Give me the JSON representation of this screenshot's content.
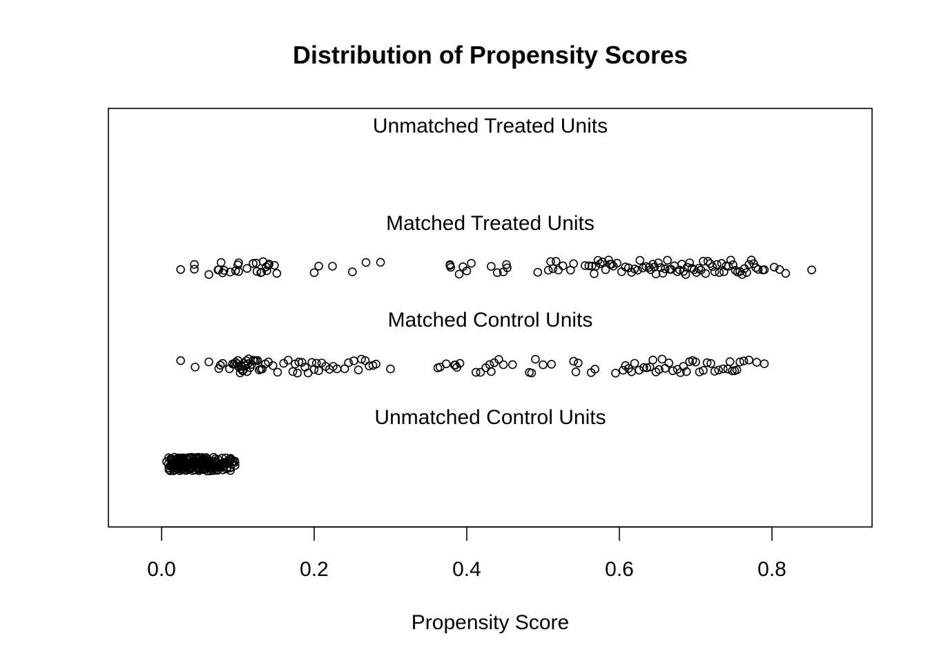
{
  "chart_data": {
    "type": "scatter",
    "title": "Distribution of Propensity Scores",
    "xlabel": "Propensity Score",
    "ylabel": "",
    "xlim": [
      -0.07,
      0.93
    ],
    "x_ticks": [
      "0.0",
      "0.2",
      "0.4",
      "0.6",
      "0.8"
    ],
    "x_tick_values": [
      0.0,
      0.2,
      0.4,
      0.6,
      0.8
    ],
    "grid": false,
    "marker": "open-circle",
    "series": [
      {
        "name": "Unmatched Treated Units",
        "values": []
      },
      {
        "name": "Matched Treated Units",
        "values": [
          0.025,
          0.043,
          0.043,
          0.062,
          0.074,
          0.075,
          0.078,
          0.08,
          0.082,
          0.09,
          0.097,
          0.1,
          0.101,
          0.101,
          0.112,
          0.12,
          0.124,
          0.125,
          0.13,
          0.131,
          0.133,
          0.137,
          0.138,
          0.14,
          0.141,
          0.148,
          0.151,
          0.2,
          0.206,
          0.224,
          0.25,
          0.268,
          0.287,
          0.378,
          0.378,
          0.379,
          0.39,
          0.395,
          0.4,
          0.406,
          0.432,
          0.44,
          0.448,
          0.452,
          0.453,
          0.493,
          0.507,
          0.51,
          0.513,
          0.517,
          0.52,
          0.526,
          0.536,
          0.54,
          0.555,
          0.56,
          0.564,
          0.567,
          0.569,
          0.572,
          0.575,
          0.578,
          0.582,
          0.586,
          0.588,
          0.59,
          0.592,
          0.597,
          0.603,
          0.608,
          0.612,
          0.616,
          0.62,
          0.624,
          0.627,
          0.631,
          0.635,
          0.639,
          0.641,
          0.644,
          0.646,
          0.648,
          0.651,
          0.654,
          0.657,
          0.66,
          0.663,
          0.666,
          0.668,
          0.672,
          0.676,
          0.679,
          0.682,
          0.684,
          0.687,
          0.689,
          0.692,
          0.695,
          0.698,
          0.701,
          0.704,
          0.707,
          0.71,
          0.713,
          0.716,
          0.719,
          0.722,
          0.725,
          0.728,
          0.731,
          0.734,
          0.737,
          0.74,
          0.743,
          0.746,
          0.749,
          0.752,
          0.755,
          0.758,
          0.761,
          0.764,
          0.767,
          0.77,
          0.773,
          0.776,
          0.779,
          0.782,
          0.788,
          0.79,
          0.803,
          0.81,
          0.818,
          0.852
        ]
      },
      {
        "name": "Matched Control Units",
        "values": [
          0.025,
          0.044,
          0.062,
          0.075,
          0.077,
          0.08,
          0.089,
          0.093,
          0.095,
          0.097,
          0.099,
          0.1,
          0.101,
          0.103,
          0.104,
          0.105,
          0.106,
          0.107,
          0.108,
          0.109,
          0.11,
          0.111,
          0.112,
          0.113,
          0.114,
          0.116,
          0.118,
          0.12,
          0.122,
          0.124,
          0.126,
          0.128,
          0.13,
          0.132,
          0.136,
          0.14,
          0.146,
          0.152,
          0.16,
          0.166,
          0.172,
          0.175,
          0.178,
          0.18,
          0.184,
          0.188,
          0.192,
          0.197,
          0.2,
          0.203,
          0.206,
          0.21,
          0.215,
          0.22,
          0.225,
          0.23,
          0.24,
          0.245,
          0.252,
          0.258,
          0.262,
          0.267,
          0.272,
          0.277,
          0.281,
          0.3,
          0.362,
          0.365,
          0.373,
          0.384,
          0.385,
          0.387,
          0.391,
          0.412,
          0.418,
          0.425,
          0.43,
          0.432,
          0.436,
          0.442,
          0.448,
          0.46,
          0.482,
          0.485,
          0.49,
          0.5,
          0.511,
          0.54,
          0.543,
          0.546,
          0.563,
          0.568,
          0.595,
          0.605,
          0.608,
          0.612,
          0.616,
          0.62,
          0.626,
          0.632,
          0.636,
          0.64,
          0.644,
          0.648,
          0.652,
          0.656,
          0.66,
          0.665,
          0.67,
          0.676,
          0.68,
          0.684,
          0.688,
          0.692,
          0.696,
          0.7,
          0.705,
          0.71,
          0.715,
          0.72,
          0.725,
          0.73,
          0.736,
          0.742,
          0.745,
          0.748,
          0.751,
          0.754,
          0.758,
          0.763,
          0.77,
          0.78,
          0.79
        ]
      },
      {
        "name": "Unmatched Control Units",
        "values": [
          0.009,
          0.011,
          0.012,
          0.013,
          0.014,
          0.015,
          0.016,
          0.017,
          0.018,
          0.019,
          0.02,
          0.021,
          0.022,
          0.023,
          0.024,
          0.025,
          0.026,
          0.027,
          0.028,
          0.029,
          0.03,
          0.031,
          0.032,
          0.033,
          0.034,
          0.035,
          0.036,
          0.037,
          0.038,
          0.039,
          0.04,
          0.041,
          0.042,
          0.043,
          0.044,
          0.045,
          0.046,
          0.047,
          0.048,
          0.049,
          0.05,
          0.051,
          0.052,
          0.053,
          0.054,
          0.055,
          0.056,
          0.057,
          0.058,
          0.059,
          0.06,
          0.061,
          0.062,
          0.064,
          0.066,
          0.068,
          0.07,
          0.072,
          0.074,
          0.076,
          0.078,
          0.08,
          0.082,
          0.084,
          0.086,
          0.088,
          0.09,
          0.092,
          0.095
        ]
      }
    ]
  }
}
